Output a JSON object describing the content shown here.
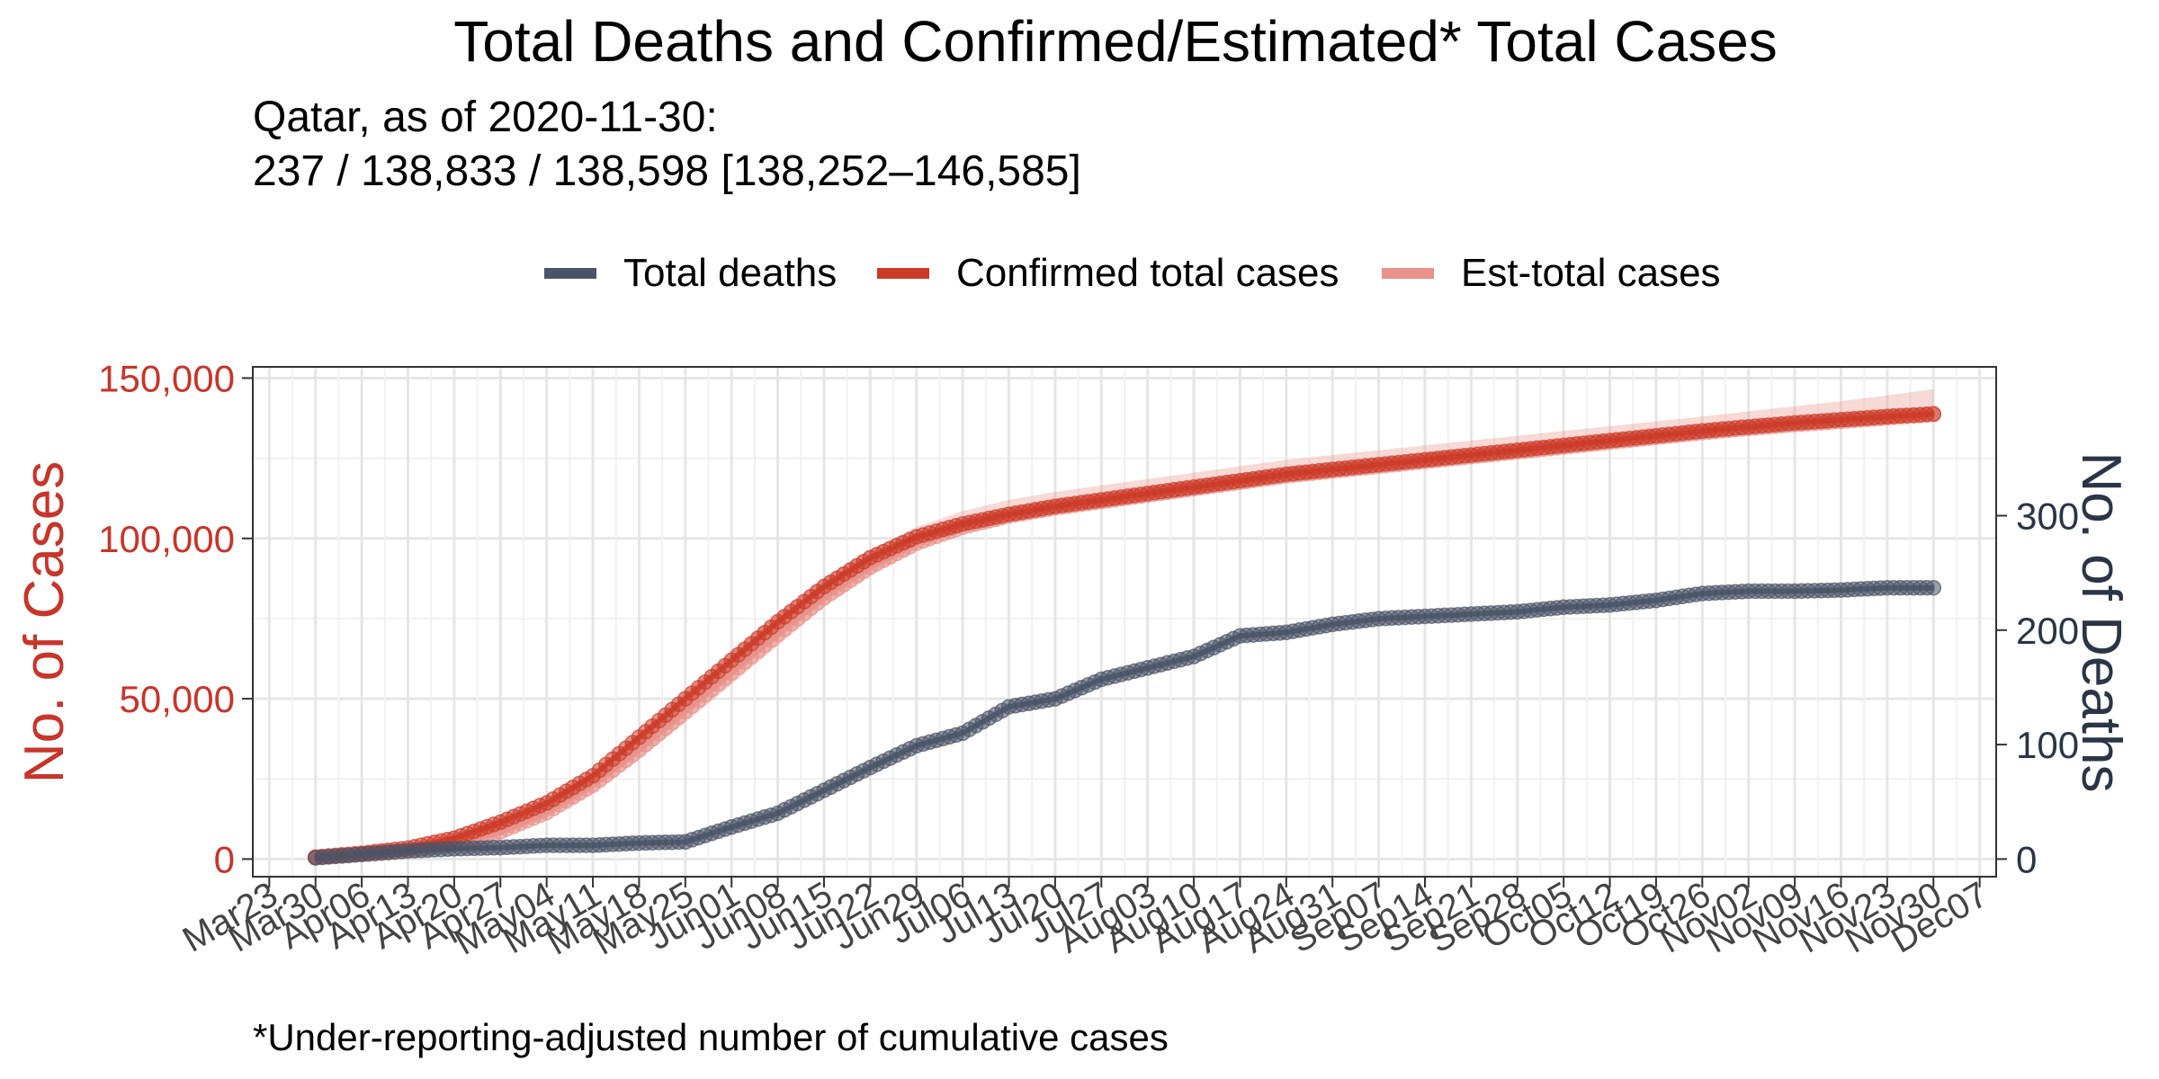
{
  "chart_data": {
    "type": "line",
    "title": "Total Deaths and Confirmed/Estimated* Total Cases",
    "subtitle_line1": "Qatar, as of 2020-11-30:",
    "subtitle_line2": "237 / 138,833 / 138,598 [138,252–146,585]",
    "caption": "*Under-reporting-adjusted number of cumulative cases",
    "y_left_label": "No. of Cases",
    "y_right_label": "No. of Deaths",
    "y_left_ticks": [
      0,
      50000,
      100000,
      150000
    ],
    "y_left_tick_labels": [
      "0",
      "50,000",
      "100,000",
      "150,000"
    ],
    "y_right_ticks": [
      0,
      100,
      200,
      300
    ],
    "y_right_tick_labels": [
      "0",
      "100",
      "200",
      "300"
    ],
    "ylim_cases": [
      -5500,
      153500
    ],
    "ylim_deaths": [
      -15.4,
      430
    ],
    "x_ticks": [
      "Mar23",
      "Mar30",
      "Apr06",
      "Apr13",
      "Apr20",
      "Apr27",
      "May04",
      "May11",
      "May18",
      "May25",
      "Jun01",
      "Jun08",
      "Jun15",
      "Jun22",
      "Jun29",
      "Jul06",
      "Jul13",
      "Jul20",
      "Jul27",
      "Aug03",
      "Aug10",
      "Aug17",
      "Aug24",
      "Aug31",
      "Sep07",
      "Sep14",
      "Sep21",
      "Sep28",
      "Oct05",
      "Oct12",
      "Oct19",
      "Oct26",
      "Nov02",
      "Nov09",
      "Nov16",
      "Nov23",
      "Nov30",
      "Dec07"
    ],
    "x_tick_dates": [
      "2020-03-23",
      "2020-03-30",
      "2020-04-06",
      "2020-04-13",
      "2020-04-20",
      "2020-04-27",
      "2020-05-04",
      "2020-05-11",
      "2020-05-18",
      "2020-05-25",
      "2020-06-01",
      "2020-06-08",
      "2020-06-15",
      "2020-06-22",
      "2020-06-29",
      "2020-07-06",
      "2020-07-13",
      "2020-07-20",
      "2020-07-27",
      "2020-08-03",
      "2020-08-10",
      "2020-08-17",
      "2020-08-24",
      "2020-08-31",
      "2020-09-07",
      "2020-09-14",
      "2020-09-21",
      "2020-09-28",
      "2020-10-05",
      "2020-10-12",
      "2020-10-19",
      "2020-10-26",
      "2020-11-02",
      "2020-11-09",
      "2020-11-16",
      "2020-11-23",
      "2020-11-30",
      "2020-12-07"
    ],
    "legend_position": "top-center",
    "grid": true,
    "series": [
      {
        "name": "Total deaths",
        "color": "#4a5468",
        "axis": "right",
        "points": [
          [
            "2020-03-30",
            1
          ],
          [
            "2020-04-06",
            4
          ],
          [
            "2020-04-13",
            7
          ],
          [
            "2020-04-20",
            9
          ],
          [
            "2020-04-27",
            10
          ],
          [
            "2020-05-04",
            12
          ],
          [
            "2020-05-11",
            12
          ],
          [
            "2020-05-18",
            14
          ],
          [
            "2020-05-25",
            15
          ],
          [
            "2020-06-01",
            28
          ],
          [
            "2020-06-08",
            40
          ],
          [
            "2020-06-15",
            60
          ],
          [
            "2020-06-22",
            80
          ],
          [
            "2020-06-29",
            99
          ],
          [
            "2020-07-06",
            110
          ],
          [
            "2020-07-13",
            133
          ],
          [
            "2020-07-20",
            140
          ],
          [
            "2020-07-27",
            157
          ],
          [
            "2020-08-03",
            167
          ],
          [
            "2020-08-10",
            177
          ],
          [
            "2020-08-17",
            195
          ],
          [
            "2020-08-24",
            198
          ],
          [
            "2020-08-31",
            205
          ],
          [
            "2020-09-07",
            210
          ],
          [
            "2020-09-14",
            212
          ],
          [
            "2020-09-21",
            214
          ],
          [
            "2020-09-28",
            216
          ],
          [
            "2020-10-05",
            220
          ],
          [
            "2020-10-12",
            222
          ],
          [
            "2020-10-19",
            226
          ],
          [
            "2020-10-26",
            232
          ],
          [
            "2020-11-02",
            234
          ],
          [
            "2020-11-09",
            234
          ],
          [
            "2020-11-16",
            235
          ],
          [
            "2020-11-23",
            237
          ],
          [
            "2020-11-30",
            237
          ]
        ]
      },
      {
        "name": "Confirmed total cases",
        "color": "#cc3a28",
        "axis": "left",
        "points": [
          [
            "2020-03-30",
            600
          ],
          [
            "2020-04-06",
            1800
          ],
          [
            "2020-04-13",
            3400
          ],
          [
            "2020-04-20",
            6500
          ],
          [
            "2020-04-27",
            11500
          ],
          [
            "2020-05-04",
            17500
          ],
          [
            "2020-05-11",
            26000
          ],
          [
            "2020-05-18",
            38000
          ],
          [
            "2020-05-25",
            50000
          ],
          [
            "2020-06-01",
            62000
          ],
          [
            "2020-06-08",
            74000
          ],
          [
            "2020-06-15",
            85000
          ],
          [
            "2020-06-22",
            94000
          ],
          [
            "2020-06-29",
            100500
          ],
          [
            "2020-07-06",
            104500
          ],
          [
            "2020-07-13",
            107500
          ],
          [
            "2020-07-20",
            110000
          ],
          [
            "2020-07-27",
            112000
          ],
          [
            "2020-08-03",
            114000
          ],
          [
            "2020-08-10",
            116000
          ],
          [
            "2020-08-17",
            118000
          ],
          [
            "2020-08-24",
            120000
          ],
          [
            "2020-08-31",
            121500
          ],
          [
            "2020-09-07",
            123000
          ],
          [
            "2020-09-14",
            124500
          ],
          [
            "2020-09-21",
            126000
          ],
          [
            "2020-09-28",
            127500
          ],
          [
            "2020-10-05",
            129000
          ],
          [
            "2020-10-12",
            130500
          ],
          [
            "2020-10-19",
            132000
          ],
          [
            "2020-10-26",
            133500
          ],
          [
            "2020-11-02",
            134800
          ],
          [
            "2020-11-09",
            136000
          ],
          [
            "2020-11-16",
            137000
          ],
          [
            "2020-11-23",
            138000
          ],
          [
            "2020-11-30",
            138833
          ]
        ]
      },
      {
        "name": "Est-total cases",
        "color": "#e8928a",
        "axis": "left",
        "points": [
          [
            "2020-03-30",
            500
          ],
          [
            "2020-04-06",
            1500
          ],
          [
            "2020-04-13",
            2600
          ],
          [
            "2020-04-20",
            4500
          ],
          [
            "2020-04-27",
            8500
          ],
          [
            "2020-05-04",
            14500
          ],
          [
            "2020-05-11",
            23000
          ],
          [
            "2020-05-18",
            34000
          ],
          [
            "2020-05-25",
            46000
          ],
          [
            "2020-06-01",
            58000
          ],
          [
            "2020-06-08",
            70000
          ],
          [
            "2020-06-15",
            81500
          ],
          [
            "2020-06-22",
            91000
          ],
          [
            "2020-06-29",
            98500
          ],
          [
            "2020-07-06",
            103500
          ],
          [
            "2020-07-13",
            107000
          ],
          [
            "2020-07-20",
            109500
          ],
          [
            "2020-07-27",
            111500
          ],
          [
            "2020-08-03",
            113500
          ],
          [
            "2020-08-10",
            115500
          ],
          [
            "2020-08-17",
            117500
          ],
          [
            "2020-08-24",
            119500
          ],
          [
            "2020-08-31",
            121000
          ],
          [
            "2020-09-07",
            122500
          ],
          [
            "2020-09-14",
            124000
          ],
          [
            "2020-09-21",
            125500
          ],
          [
            "2020-09-28",
            127000
          ],
          [
            "2020-10-05",
            128500
          ],
          [
            "2020-10-12",
            130000
          ],
          [
            "2020-10-19",
            131500
          ],
          [
            "2020-10-26",
            133000
          ],
          [
            "2020-11-02",
            134300
          ],
          [
            "2020-11-09",
            135500
          ],
          [
            "2020-11-16",
            136500
          ],
          [
            "2020-11-23",
            137600
          ],
          [
            "2020-11-30",
            138598
          ]
        ],
        "band_upper": [
          [
            "2020-03-30",
            700
          ],
          [
            "2020-04-06",
            2000
          ],
          [
            "2020-04-13",
            3500
          ],
          [
            "2020-04-20",
            6000
          ],
          [
            "2020-04-27",
            10500
          ],
          [
            "2020-05-04",
            17500
          ],
          [
            "2020-05-11",
            27000
          ],
          [
            "2020-05-18",
            39000
          ],
          [
            "2020-05-25",
            52000
          ],
          [
            "2020-06-01",
            64500
          ],
          [
            "2020-06-08",
            76500
          ],
          [
            "2020-06-15",
            87500
          ],
          [
            "2020-06-22",
            96500
          ],
          [
            "2020-06-29",
            103500
          ],
          [
            "2020-07-06",
            108500
          ],
          [
            "2020-07-13",
            112000
          ],
          [
            "2020-07-20",
            114500
          ],
          [
            "2020-07-27",
            116500
          ],
          [
            "2020-08-03",
            118500
          ],
          [
            "2020-08-10",
            120500
          ],
          [
            "2020-08-17",
            122500
          ],
          [
            "2020-08-24",
            124500
          ],
          [
            "2020-08-31",
            126000
          ],
          [
            "2020-09-07",
            127500
          ],
          [
            "2020-09-14",
            129000
          ],
          [
            "2020-09-21",
            130500
          ],
          [
            "2020-09-28",
            132000
          ],
          [
            "2020-10-05",
            133500
          ],
          [
            "2020-10-12",
            135000
          ],
          [
            "2020-10-19",
            136500
          ],
          [
            "2020-10-26",
            138000
          ],
          [
            "2020-11-02",
            139600
          ],
          [
            "2020-11-09",
            141200
          ],
          [
            "2020-11-16",
            142800
          ],
          [
            "2020-11-23",
            144600
          ],
          [
            "2020-11-30",
            146585
          ]
        ],
        "band_lower": [
          [
            "2020-03-30",
            400
          ],
          [
            "2020-04-06",
            1300
          ],
          [
            "2020-04-13",
            2200
          ],
          [
            "2020-04-20",
            3800
          ],
          [
            "2020-04-27",
            7300
          ],
          [
            "2020-05-04",
            12800
          ],
          [
            "2020-05-11",
            20500
          ],
          [
            "2020-05-18",
            31000
          ],
          [
            "2020-05-25",
            42500
          ],
          [
            "2020-06-01",
            54500
          ],
          [
            "2020-06-08",
            66500
          ],
          [
            "2020-06-15",
            78500
          ],
          [
            "2020-06-22",
            88500
          ],
          [
            "2020-06-29",
            96500
          ],
          [
            "2020-07-06",
            102000
          ],
          [
            "2020-07-13",
            105700
          ],
          [
            "2020-07-20",
            108300
          ],
          [
            "2020-07-27",
            110400
          ],
          [
            "2020-08-03",
            112500
          ],
          [
            "2020-08-10",
            114500
          ],
          [
            "2020-08-17",
            116500
          ],
          [
            "2020-08-24",
            118500
          ],
          [
            "2020-08-31",
            120000
          ],
          [
            "2020-09-07",
            121600
          ],
          [
            "2020-09-14",
            123100
          ],
          [
            "2020-09-21",
            124700
          ],
          [
            "2020-09-28",
            126200
          ],
          [
            "2020-10-05",
            127700
          ],
          [
            "2020-10-12",
            129200
          ],
          [
            "2020-10-19",
            130700
          ],
          [
            "2020-10-26",
            132200
          ],
          [
            "2020-11-02",
            133500
          ],
          [
            "2020-11-09",
            134700
          ],
          [
            "2020-11-16",
            135800
          ],
          [
            "2020-11-23",
            137000
          ],
          [
            "2020-11-30",
            138252
          ]
        ]
      }
    ]
  }
}
